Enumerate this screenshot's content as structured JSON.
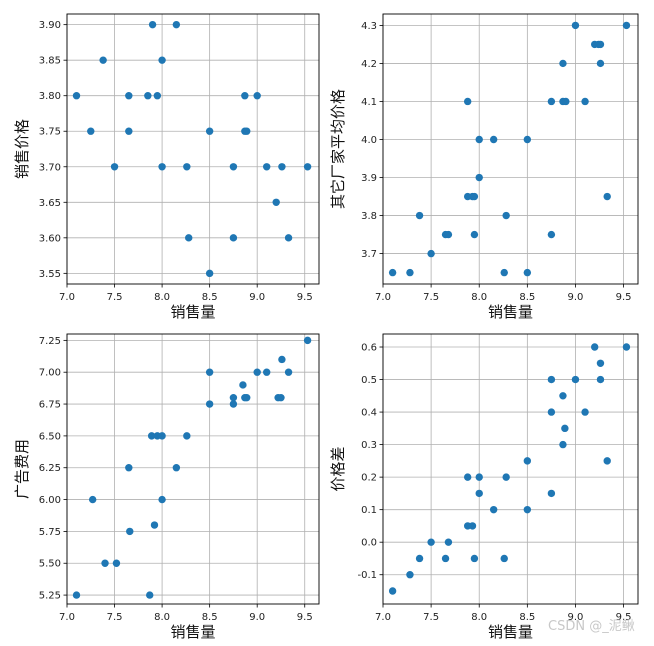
{
  "chart_data": [
    {
      "type": "scatter",
      "xlabel": "销售量",
      "ylabel": "销售价格",
      "xlim": [
        7.0,
        9.65
      ],
      "ylim": [
        3.535,
        3.915
      ],
      "xticks": [
        "7.0",
        "7.5",
        "8.0",
        "8.5",
        "9.0",
        "9.5"
      ],
      "yticks": [
        "3.55",
        "3.60",
        "3.65",
        "3.70",
        "3.75",
        "3.80",
        "3.85",
        "3.90"
      ],
      "grid": true,
      "color": "#1f77b4",
      "series": [
        {
          "x": [
            7.1,
            7.25,
            7.38,
            7.5,
            7.65,
            7.65,
            7.85,
            7.9,
            7.95,
            8.0,
            8.0,
            8.15,
            8.26,
            8.28,
            8.5,
            8.5,
            8.75,
            8.75,
            8.87,
            8.87,
            8.89,
            9.0,
            9.1,
            9.2,
            9.26,
            9.33,
            9.53
          ],
          "y": [
            3.8,
            3.75,
            3.85,
            3.7,
            3.8,
            3.75,
            3.8,
            3.9,
            3.8,
            3.85,
            3.7,
            3.9,
            3.7,
            3.6,
            3.75,
            3.55,
            3.7,
            3.6,
            3.75,
            3.8,
            3.75,
            3.8,
            3.7,
            3.65,
            3.7,
            3.6,
            3.7
          ]
        }
      ]
    },
    {
      "type": "scatter",
      "xlabel": "销售量",
      "ylabel": "其它厂家平均价格",
      "xlim": [
        7.0,
        9.65
      ],
      "ylim": [
        3.62,
        4.33
      ],
      "xticks": [
        "7.0",
        "7.5",
        "8.0",
        "8.5",
        "9.0",
        "9.5"
      ],
      "yticks": [
        "3.7",
        "3.8",
        "3.9",
        "4.0",
        "4.1",
        "4.2",
        "4.3"
      ],
      "grid": true,
      "color": "#1f77b4",
      "series": [
        {
          "x": [
            7.1,
            7.28,
            7.38,
            7.5,
            7.65,
            7.68,
            7.88,
            7.88,
            7.93,
            7.95,
            7.95,
            8.0,
            8.0,
            8.15,
            8.26,
            8.28,
            8.5,
            8.5,
            8.75,
            8.75,
            8.87,
            8.87,
            8.9,
            9.0,
            9.1,
            9.2,
            9.24,
            9.26,
            9.26,
            9.33,
            9.53
          ],
          "y": [
            3.65,
            3.65,
            3.8,
            3.7,
            3.75,
            3.75,
            3.85,
            4.1,
            3.85,
            3.85,
            3.75,
            4.0,
            3.9,
            4.0,
            3.65,
            3.8,
            4.0,
            3.65,
            4.1,
            3.75,
            4.2,
            4.1,
            4.1,
            4.3,
            4.1,
            4.25,
            4.25,
            4.2,
            4.25,
            3.85,
            4.3
          ]
        }
      ]
    },
    {
      "type": "scatter",
      "xlabel": "销售量",
      "ylabel": "广告费用",
      "xlim": [
        7.0,
        9.65
      ],
      "ylim": [
        5.18,
        7.3
      ],
      "xticks": [
        "7.0",
        "7.5",
        "8.0",
        "8.5",
        "9.0",
        "9.5"
      ],
      "yticks": [
        "5.25",
        "5.50",
        "5.75",
        "6.00",
        "6.25",
        "6.50",
        "6.75",
        "7.00",
        "7.25"
      ],
      "grid": true,
      "color": "#1f77b4",
      "series": [
        {
          "x": [
            7.1,
            7.27,
            7.4,
            7.52,
            7.65,
            7.66,
            7.87,
            7.89,
            7.92,
            7.95,
            8.0,
            8.0,
            8.15,
            8.26,
            8.5,
            8.5,
            8.75,
            8.75,
            8.85,
            8.87,
            8.89,
            9.0,
            9.1,
            9.22,
            9.25,
            9.26,
            9.33,
            9.53
          ],
          "y": [
            5.25,
            6.0,
            5.5,
            5.5,
            6.25,
            5.75,
            5.25,
            6.5,
            5.8,
            6.5,
            6.5,
            6.0,
            6.25,
            6.5,
            7.0,
            6.75,
            6.8,
            6.75,
            6.9,
            6.8,
            6.8,
            7.0,
            7.0,
            6.8,
            6.8,
            7.1,
            7.0,
            7.25
          ]
        }
      ]
    },
    {
      "type": "scatter",
      "xlabel": "销售量",
      "ylabel": "价格差",
      "xlim": [
        7.0,
        9.65
      ],
      "ylim": [
        -0.19,
        0.64
      ],
      "xticks": [
        "7.0",
        "7.5",
        "8.0",
        "8.5",
        "9.0",
        "9.5"
      ],
      "yticks": [
        "-0.1",
        "0.0",
        "0.1",
        "0.2",
        "0.3",
        "0.4",
        "0.5",
        "0.6"
      ],
      "grid": true,
      "color": "#1f77b4",
      "series": [
        {
          "x": [
            7.1,
            7.28,
            7.38,
            7.5,
            7.65,
            7.68,
            7.88,
            7.88,
            7.93,
            7.95,
            8.0,
            8.0,
            8.15,
            8.26,
            8.28,
            8.5,
            8.5,
            8.75,
            8.75,
            8.75,
            8.87,
            8.87,
            8.89,
            9.0,
            9.1,
            9.2,
            9.26,
            9.26,
            9.33,
            9.53
          ],
          "y": [
            -0.15,
            -0.1,
            -0.05,
            0.0,
            -0.05,
            0.0,
            0.05,
            0.2,
            0.05,
            -0.05,
            0.2,
            0.15,
            0.1,
            -0.05,
            0.2,
            0.25,
            0.1,
            0.5,
            0.4,
            0.15,
            0.45,
            0.3,
            0.35,
            0.5,
            0.4,
            0.6,
            0.55,
            0.5,
            0.25,
            0.6
          ]
        }
      ]
    }
  ],
  "watermark": "CSDN @_泥鳅"
}
